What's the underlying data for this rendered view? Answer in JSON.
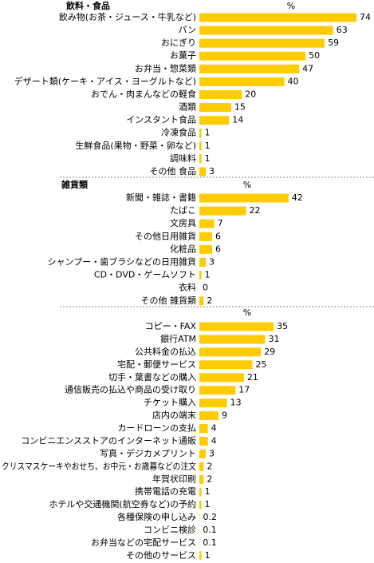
{
  "chart_data": [
    {
      "type": "barh",
      "title": "飲料・食品",
      "unit": "%",
      "color": "#ffcc00",
      "categories": [
        "飲み物(お茶・ジュース・牛乳など)",
        "パン",
        "おにぎり",
        "お菓子",
        "お弁当・惣菜類",
        "デザート類(ケーキ・アイス・ヨーグルトなど)",
        "おでん・肉まんなどの軽食",
        "酒類",
        "インスタント食品",
        "冷凍食品",
        "生鮮食品(果物・野菜・卵など)",
        "調味料",
        "その他 食品"
      ],
      "values": [
        74,
        63,
        59,
        50,
        47,
        40,
        20,
        15,
        14,
        1,
        1,
        1,
        3
      ]
    },
    {
      "type": "barh",
      "title": "雑貨類",
      "unit": "%",
      "color": "#ffcc00",
      "categories": [
        "新聞・雑誌・書籍",
        "たばこ",
        "文房具",
        "その他日用雑貨",
        "化粧品",
        "シャンプー・歯ブラシなどの日用雑貨",
        "CD・DVD・ゲームソフト",
        "衣料",
        "その他 雑貨類"
      ],
      "values": [
        42,
        22,
        7,
        6,
        6,
        3,
        1,
        0,
        2
      ]
    },
    {
      "type": "barh",
      "unit": "%",
      "color": "#ffcc00",
      "categories": [
        "コピー・FAX",
        "銀行ATM",
        "公共料金の払込",
        "宅配・郵便サービス",
        "切手・葉書などの購入",
        "通信販売の払込や商品の受け取り",
        "チケット購入",
        "店内の端末",
        "カードローンの支払",
        "コンビニエンスストアのインターネット通販",
        "写真・デジカメプリント",
        "クリスマスケーキやおせち、お中元・お歳暮などの注文",
        "年賀状印刷",
        "携帯電話の充電",
        "ホテルや交通機関(航空券など)の予約",
        "各種保険の申し込み",
        "コンビニ検診",
        "お弁当などの宅配サービス",
        "その他のサービス"
      ],
      "values": [
        35,
        31,
        29,
        25,
        21,
        17,
        13,
        9,
        4,
        4,
        3,
        2,
        2,
        1,
        1,
        0.2,
        0.1,
        0.1,
        1
      ]
    }
  ]
}
